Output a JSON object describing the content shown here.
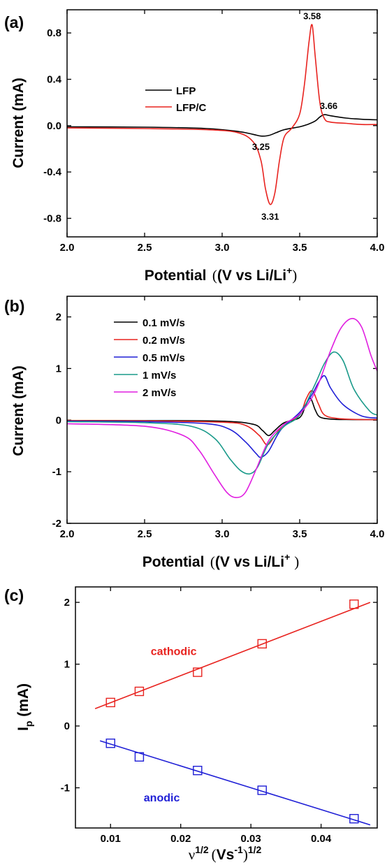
{
  "chart_data": [
    {
      "id": "a",
      "panel_label": "(a)",
      "type": "line",
      "xlabel": "Potential",
      "xlabel_unit": "(V vs Li/Li",
      "xlabel_sup": "+",
      "xlabel_close": ")",
      "ylabel": "Current (mA)",
      "xlim": [
        2.0,
        4.0
      ],
      "ylim": [
        -0.96,
        1.0
      ],
      "xticks": [
        2.0,
        2.5,
        3.0,
        3.5,
        4.0
      ],
      "xtick_labels": [
        "2.0",
        "2.5",
        "3.0",
        "3.5",
        "4.0"
      ],
      "yticks": [
        -0.8,
        -0.4,
        0.0,
        0.4,
        0.8
      ],
      "ytick_labels": [
        "-0.8",
        "-0.4",
        "0.0",
        "0.4",
        "0.8"
      ],
      "legend_position": "upper-left",
      "series": [
        {
          "name": "LFP",
          "color": "#000000",
          "x": [
            2.0,
            2.5,
            2.9,
            3.1,
            3.2,
            3.25,
            3.3,
            3.35,
            3.4,
            3.5,
            3.55,
            3.6,
            3.63,
            3.66,
            3.7,
            3.8,
            3.9,
            4.0
          ],
          "y": [
            -0.01,
            -0.013,
            -0.025,
            -0.05,
            -0.075,
            -0.09,
            -0.085,
            -0.06,
            -0.035,
            -0.01,
            0.01,
            0.04,
            0.075,
            0.095,
            0.085,
            0.065,
            0.055,
            0.05
          ]
        },
        {
          "name": "LFP/C",
          "color": "#e8231f",
          "x": [
            2.0,
            2.5,
            2.9,
            3.1,
            3.2,
            3.25,
            3.28,
            3.31,
            3.34,
            3.37,
            3.4,
            3.45,
            3.5,
            3.53,
            3.56,
            3.58,
            3.6,
            3.63,
            3.66,
            3.7,
            3.8,
            3.9,
            4.0
          ],
          "y": [
            -0.02,
            -0.025,
            -0.035,
            -0.06,
            -0.14,
            -0.3,
            -0.55,
            -0.68,
            -0.58,
            -0.3,
            -0.1,
            -0.02,
            0.1,
            0.35,
            0.72,
            0.87,
            0.6,
            0.2,
            0.06,
            0.03,
            0.02,
            0.01,
            0.01
          ]
        }
      ],
      "annotations": [
        {
          "text": "3.58",
          "x": 3.58,
          "y": 0.87
        },
        {
          "text": "3.66",
          "x": 3.66,
          "y": 0.095
        },
        {
          "text": "3.25",
          "x": 3.25,
          "y": -0.09
        },
        {
          "text": "3.31",
          "x": 3.31,
          "y": -0.68
        }
      ]
    },
    {
      "id": "b",
      "panel_label": "(b)",
      "type": "line",
      "xlabel": "Potential",
      "xlabel_unit": "(V vs Li/Li",
      "xlabel_sup": "+",
      "xlabel_close": ")",
      "ylabel": "Current (mA)",
      "xlim": [
        2.0,
        4.0
      ],
      "ylim": [
        -2.0,
        2.4
      ],
      "xticks": [
        2.0,
        2.5,
        3.0,
        3.5,
        4.0
      ],
      "xtick_labels": [
        "2.0",
        "2.5",
        "3.0",
        "3.5",
        "4.0"
      ],
      "yticks": [
        -2,
        -1,
        0,
        1,
        2
      ],
      "ytick_labels": [
        "-2",
        "-1",
        "0",
        "1",
        "2"
      ],
      "legend_position": "upper-left",
      "series": [
        {
          "name": "0.1 mV/s",
          "color": "#000000",
          "x": [
            2.0,
            2.5,
            3.0,
            3.2,
            3.26,
            3.3,
            3.34,
            3.4,
            3.5,
            3.54,
            3.57,
            3.6,
            3.63,
            3.7,
            3.8,
            4.0
          ],
          "y": [
            -0.01,
            -0.01,
            -0.02,
            -0.08,
            -0.2,
            -0.3,
            -0.2,
            -0.05,
            0.05,
            0.3,
            0.42,
            0.2,
            0.06,
            0.02,
            0.01,
            0.01
          ]
        },
        {
          "name": "0.2 mV/s",
          "color": "#e8231f",
          "x": [
            2.0,
            2.5,
            3.0,
            3.15,
            3.24,
            3.29,
            3.34,
            3.4,
            3.5,
            3.54,
            3.58,
            3.62,
            3.66,
            3.75,
            3.9,
            4.0
          ],
          "y": [
            -0.01,
            -0.015,
            -0.04,
            -0.1,
            -0.3,
            -0.48,
            -0.3,
            -0.08,
            0.1,
            0.4,
            0.57,
            0.32,
            0.1,
            0.03,
            0.01,
            0.01
          ]
        },
        {
          "name": "0.5 mV/s",
          "color": "#1f1fd6",
          "x": [
            2.0,
            2.5,
            2.9,
            3.05,
            3.15,
            3.22,
            3.25,
            3.3,
            3.38,
            3.5,
            3.58,
            3.62,
            3.66,
            3.7,
            3.78,
            3.9,
            4.0
          ],
          "y": [
            -0.02,
            -0.03,
            -0.07,
            -0.18,
            -0.42,
            -0.65,
            -0.72,
            -0.6,
            -0.18,
            0.15,
            0.5,
            0.72,
            0.86,
            0.62,
            0.3,
            0.08,
            0.04
          ]
        },
        {
          "name": "1 mV/s",
          "color": "#1a9a8a",
          "x": [
            2.0,
            2.5,
            2.8,
            2.95,
            3.05,
            3.12,
            3.18,
            3.23,
            3.3,
            3.4,
            3.5,
            3.6,
            3.66,
            3.72,
            3.78,
            3.85,
            3.95,
            4.0
          ],
          "y": [
            -0.03,
            -0.05,
            -0.12,
            -0.35,
            -0.75,
            -0.98,
            -1.04,
            -0.9,
            -0.45,
            -0.12,
            0.1,
            0.7,
            1.1,
            1.32,
            1.15,
            0.6,
            0.18,
            0.1
          ]
        },
        {
          "name": "2 mV/s",
          "color": "#e01ee0",
          "x": [
            2.0,
            2.5,
            2.75,
            2.85,
            2.95,
            3.03,
            3.09,
            3.15,
            3.22,
            3.3,
            3.4,
            3.5,
            3.6,
            3.7,
            3.77,
            3.84,
            3.9,
            3.96,
            4.0
          ],
          "y": [
            -0.07,
            -0.12,
            -0.3,
            -0.58,
            -1.05,
            -1.4,
            -1.5,
            -1.4,
            -0.95,
            -0.4,
            -0.08,
            0.12,
            0.55,
            1.35,
            1.8,
            1.97,
            1.8,
            1.25,
            0.95
          ]
        }
      ]
    },
    {
      "id": "c",
      "panel_label": "(c)",
      "type": "scatter",
      "xlabel": "ν",
      "xlabel_sup": "1/2",
      "xlabel_unit_open": "(",
      "xlabel_unit_main": "Vs",
      "xlabel_unit_sup": "-1",
      "xlabel_unit_close": ")",
      "xlabel_unit_sup2": "1/2",
      "ylabel": "I",
      "ylabel_sub": "p",
      "ylabel_unit": " (mA)",
      "xlim": [
        0.005,
        0.048
      ],
      "ylim": [
        -1.65,
        2.25
      ],
      "xticks": [
        0.01,
        0.02,
        0.03,
        0.04
      ],
      "xtick_labels": [
        "0.01",
        "0.02",
        "0.03",
        "0.04"
      ],
      "yticks": [
        -1,
        0,
        1,
        2
      ],
      "ytick_labels": [
        "-1",
        "0",
        "1",
        "2"
      ],
      "series": [
        {
          "name": "cathodic",
          "color": "#e8231f",
          "x": [
            0.01,
            0.0141,
            0.0224,
            0.0316,
            0.0447
          ],
          "y": [
            0.38,
            0.56,
            0.87,
            1.33,
            1.97
          ],
          "fit": {
            "x": [
              0.0078,
              0.047
            ],
            "y": [
              0.28,
              2.0
            ]
          }
        },
        {
          "name": "anodic",
          "color": "#1f1fd6",
          "x": [
            0.01,
            0.0141,
            0.0224,
            0.0316,
            0.0447
          ],
          "y": [
            -0.28,
            -0.5,
            -0.72,
            -1.04,
            -1.5
          ],
          "fit": {
            "x": [
              0.0085,
              0.047
            ],
            "y": [
              -0.24,
              -1.6
            ]
          }
        }
      ],
      "annotations": [
        {
          "text": "cathodic",
          "x": 0.019,
          "y": 1.15,
          "color": "#e8231f"
        },
        {
          "text": "anodic",
          "x": 0.0173,
          "y": -1.22,
          "color": "#1f1fd6"
        }
      ]
    }
  ]
}
